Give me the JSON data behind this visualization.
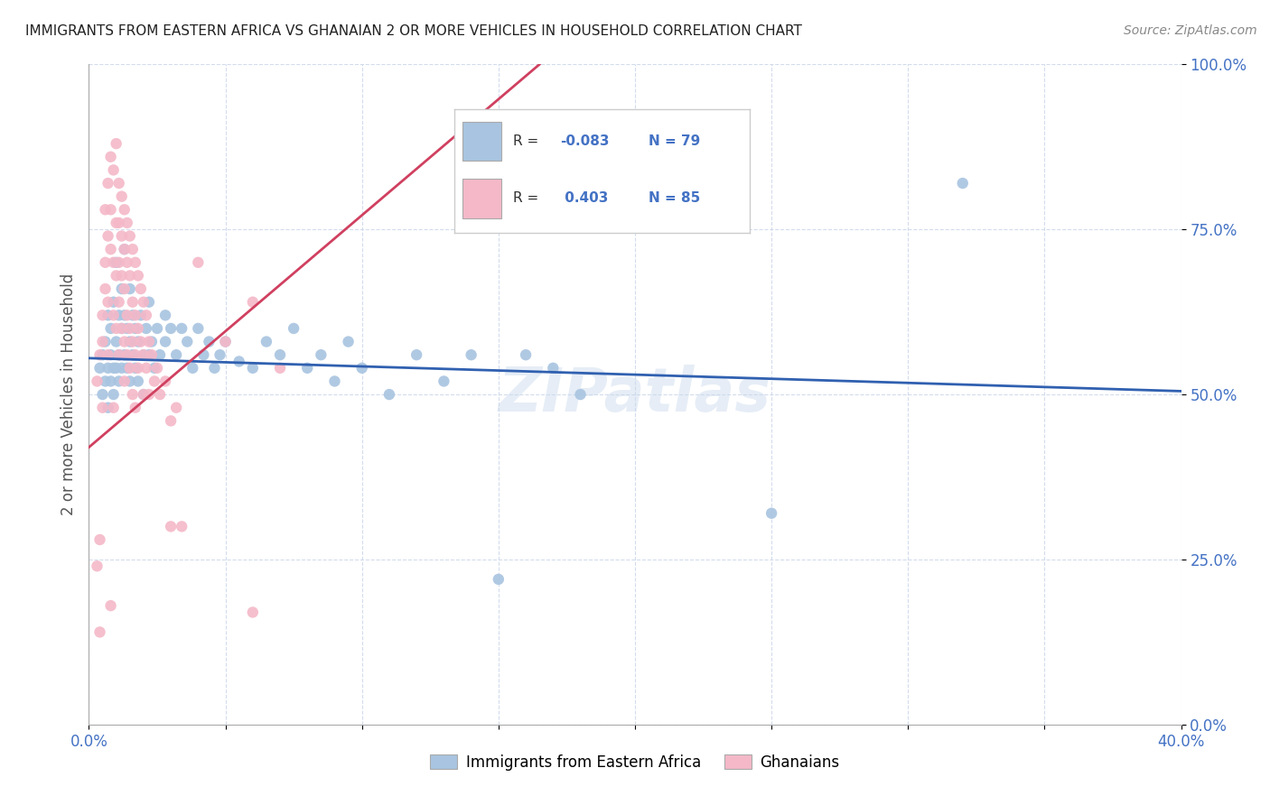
{
  "title": "IMMIGRANTS FROM EASTERN AFRICA VS GHANAIAN 2 OR MORE VEHICLES IN HOUSEHOLD CORRELATION CHART",
  "source": "Source: ZipAtlas.com",
  "ylabel": "2 or more Vehicles in Household",
  "ytick_labels": [
    "0.0%",
    "25.0%",
    "50.0%",
    "75.0%",
    "100.0%"
  ],
  "ytick_values": [
    0.0,
    0.25,
    0.5,
    0.75,
    1.0
  ],
  "xtick_values": [
    0.0,
    0.05,
    0.1,
    0.15,
    0.2,
    0.25,
    0.3,
    0.35,
    0.4
  ],
  "xtick_labels": [
    "0.0%",
    "",
    "",
    "",
    "",
    "",
    "",
    "",
    "40.0%"
  ],
  "xlim": [
    0.0,
    0.4
  ],
  "ylim": [
    0.0,
    1.0
  ],
  "watermark": "ZIPatlas",
  "legend_blue_label": "Immigrants from Eastern Africa",
  "legend_pink_label": "Ghanaians",
  "blue_color": "#a8c4e0",
  "pink_color": "#f4b8c8",
  "blue_line_color": "#3060b0",
  "pink_line_color": "#d04060",
  "axis_label_color": "#4472c4",
  "title_color": "#222222",
  "blue_scatter": [
    [
      0.004,
      0.54
    ],
    [
      0.005,
      0.56
    ],
    [
      0.005,
      0.5
    ],
    [
      0.006,
      0.58
    ],
    [
      0.006,
      0.52
    ],
    [
      0.007,
      0.54
    ],
    [
      0.007,
      0.62
    ],
    [
      0.007,
      0.48
    ],
    [
      0.008,
      0.56
    ],
    [
      0.008,
      0.52
    ],
    [
      0.008,
      0.6
    ],
    [
      0.009,
      0.54
    ],
    [
      0.009,
      0.5
    ],
    [
      0.009,
      0.64
    ],
    [
      0.01,
      0.58
    ],
    [
      0.01,
      0.54
    ],
    [
      0.01,
      0.7
    ],
    [
      0.011,
      0.62
    ],
    [
      0.011,
      0.56
    ],
    [
      0.011,
      0.52
    ],
    [
      0.012,
      0.66
    ],
    [
      0.012,
      0.6
    ],
    [
      0.012,
      0.54
    ],
    [
      0.013,
      0.72
    ],
    [
      0.013,
      0.62
    ],
    [
      0.013,
      0.56
    ],
    [
      0.014,
      0.6
    ],
    [
      0.014,
      0.54
    ],
    [
      0.015,
      0.66
    ],
    [
      0.015,
      0.58
    ],
    [
      0.015,
      0.52
    ],
    [
      0.016,
      0.62
    ],
    [
      0.016,
      0.56
    ],
    [
      0.017,
      0.6
    ],
    [
      0.017,
      0.54
    ],
    [
      0.018,
      0.58
    ],
    [
      0.018,
      0.52
    ],
    [
      0.019,
      0.62
    ],
    [
      0.02,
      0.56
    ],
    [
      0.02,
      0.5
    ],
    [
      0.021,
      0.6
    ],
    [
      0.022,
      0.56
    ],
    [
      0.022,
      0.64
    ],
    [
      0.023,
      0.58
    ],
    [
      0.024,
      0.54
    ],
    [
      0.025,
      0.6
    ],
    [
      0.026,
      0.56
    ],
    [
      0.028,
      0.62
    ],
    [
      0.028,
      0.58
    ],
    [
      0.03,
      0.6
    ],
    [
      0.032,
      0.56
    ],
    [
      0.034,
      0.6
    ],
    [
      0.036,
      0.58
    ],
    [
      0.038,
      0.54
    ],
    [
      0.04,
      0.6
    ],
    [
      0.042,
      0.56
    ],
    [
      0.044,
      0.58
    ],
    [
      0.046,
      0.54
    ],
    [
      0.048,
      0.56
    ],
    [
      0.05,
      0.58
    ],
    [
      0.055,
      0.55
    ],
    [
      0.06,
      0.54
    ],
    [
      0.065,
      0.58
    ],
    [
      0.07,
      0.56
    ],
    [
      0.075,
      0.6
    ],
    [
      0.08,
      0.54
    ],
    [
      0.085,
      0.56
    ],
    [
      0.09,
      0.52
    ],
    [
      0.095,
      0.58
    ],
    [
      0.1,
      0.54
    ],
    [
      0.11,
      0.5
    ],
    [
      0.12,
      0.56
    ],
    [
      0.13,
      0.52
    ],
    [
      0.14,
      0.56
    ],
    [
      0.15,
      0.22
    ],
    [
      0.16,
      0.56
    ],
    [
      0.17,
      0.54
    ],
    [
      0.18,
      0.5
    ],
    [
      0.25,
      0.32
    ],
    [
      0.32,
      0.82
    ]
  ],
  "pink_scatter": [
    [
      0.003,
      0.52
    ],
    [
      0.003,
      0.24
    ],
    [
      0.004,
      0.56
    ],
    [
      0.004,
      0.14
    ],
    [
      0.004,
      0.28
    ],
    [
      0.005,
      0.62
    ],
    [
      0.005,
      0.58
    ],
    [
      0.005,
      0.48
    ],
    [
      0.006,
      0.7
    ],
    [
      0.006,
      0.66
    ],
    [
      0.006,
      0.78
    ],
    [
      0.007,
      0.82
    ],
    [
      0.007,
      0.74
    ],
    [
      0.007,
      0.64
    ],
    [
      0.007,
      0.56
    ],
    [
      0.008,
      0.86
    ],
    [
      0.008,
      0.78
    ],
    [
      0.008,
      0.72
    ],
    [
      0.008,
      0.18
    ],
    [
      0.009,
      0.84
    ],
    [
      0.009,
      0.7
    ],
    [
      0.009,
      0.62
    ],
    [
      0.009,
      0.48
    ],
    [
      0.01,
      0.88
    ],
    [
      0.01,
      0.76
    ],
    [
      0.01,
      0.68
    ],
    [
      0.01,
      0.6
    ],
    [
      0.011,
      0.82
    ],
    [
      0.011,
      0.76
    ],
    [
      0.011,
      0.7
    ],
    [
      0.011,
      0.64
    ],
    [
      0.011,
      0.56
    ],
    [
      0.012,
      0.8
    ],
    [
      0.012,
      0.74
    ],
    [
      0.012,
      0.68
    ],
    [
      0.012,
      0.6
    ],
    [
      0.013,
      0.78
    ],
    [
      0.013,
      0.72
    ],
    [
      0.013,
      0.66
    ],
    [
      0.013,
      0.58
    ],
    [
      0.013,
      0.52
    ],
    [
      0.014,
      0.76
    ],
    [
      0.014,
      0.7
    ],
    [
      0.014,
      0.62
    ],
    [
      0.014,
      0.56
    ],
    [
      0.015,
      0.74
    ],
    [
      0.015,
      0.68
    ],
    [
      0.015,
      0.6
    ],
    [
      0.015,
      0.54
    ],
    [
      0.016,
      0.72
    ],
    [
      0.016,
      0.64
    ],
    [
      0.016,
      0.58
    ],
    [
      0.016,
      0.5
    ],
    [
      0.017,
      0.7
    ],
    [
      0.017,
      0.62
    ],
    [
      0.017,
      0.56
    ],
    [
      0.017,
      0.48
    ],
    [
      0.018,
      0.68
    ],
    [
      0.018,
      0.6
    ],
    [
      0.018,
      0.54
    ],
    [
      0.019,
      0.66
    ],
    [
      0.019,
      0.58
    ],
    [
      0.02,
      0.64
    ],
    [
      0.02,
      0.56
    ],
    [
      0.02,
      0.5
    ],
    [
      0.021,
      0.62
    ],
    [
      0.021,
      0.54
    ],
    [
      0.022,
      0.58
    ],
    [
      0.022,
      0.5
    ],
    [
      0.023,
      0.56
    ],
    [
      0.024,
      0.52
    ],
    [
      0.025,
      0.54
    ],
    [
      0.026,
      0.5
    ],
    [
      0.028,
      0.52
    ],
    [
      0.03,
      0.3
    ],
    [
      0.03,
      0.46
    ],
    [
      0.032,
      0.48
    ],
    [
      0.034,
      0.3
    ],
    [
      0.04,
      0.7
    ],
    [
      0.05,
      0.58
    ],
    [
      0.06,
      0.64
    ],
    [
      0.06,
      0.17
    ],
    [
      0.07,
      0.54
    ]
  ],
  "blue_trend_x": [
    0.0,
    0.4
  ],
  "blue_trend_y": [
    0.555,
    0.505
  ],
  "pink_trend_x": [
    0.0,
    0.165
  ],
  "pink_trend_y": [
    0.42,
    1.0
  ]
}
